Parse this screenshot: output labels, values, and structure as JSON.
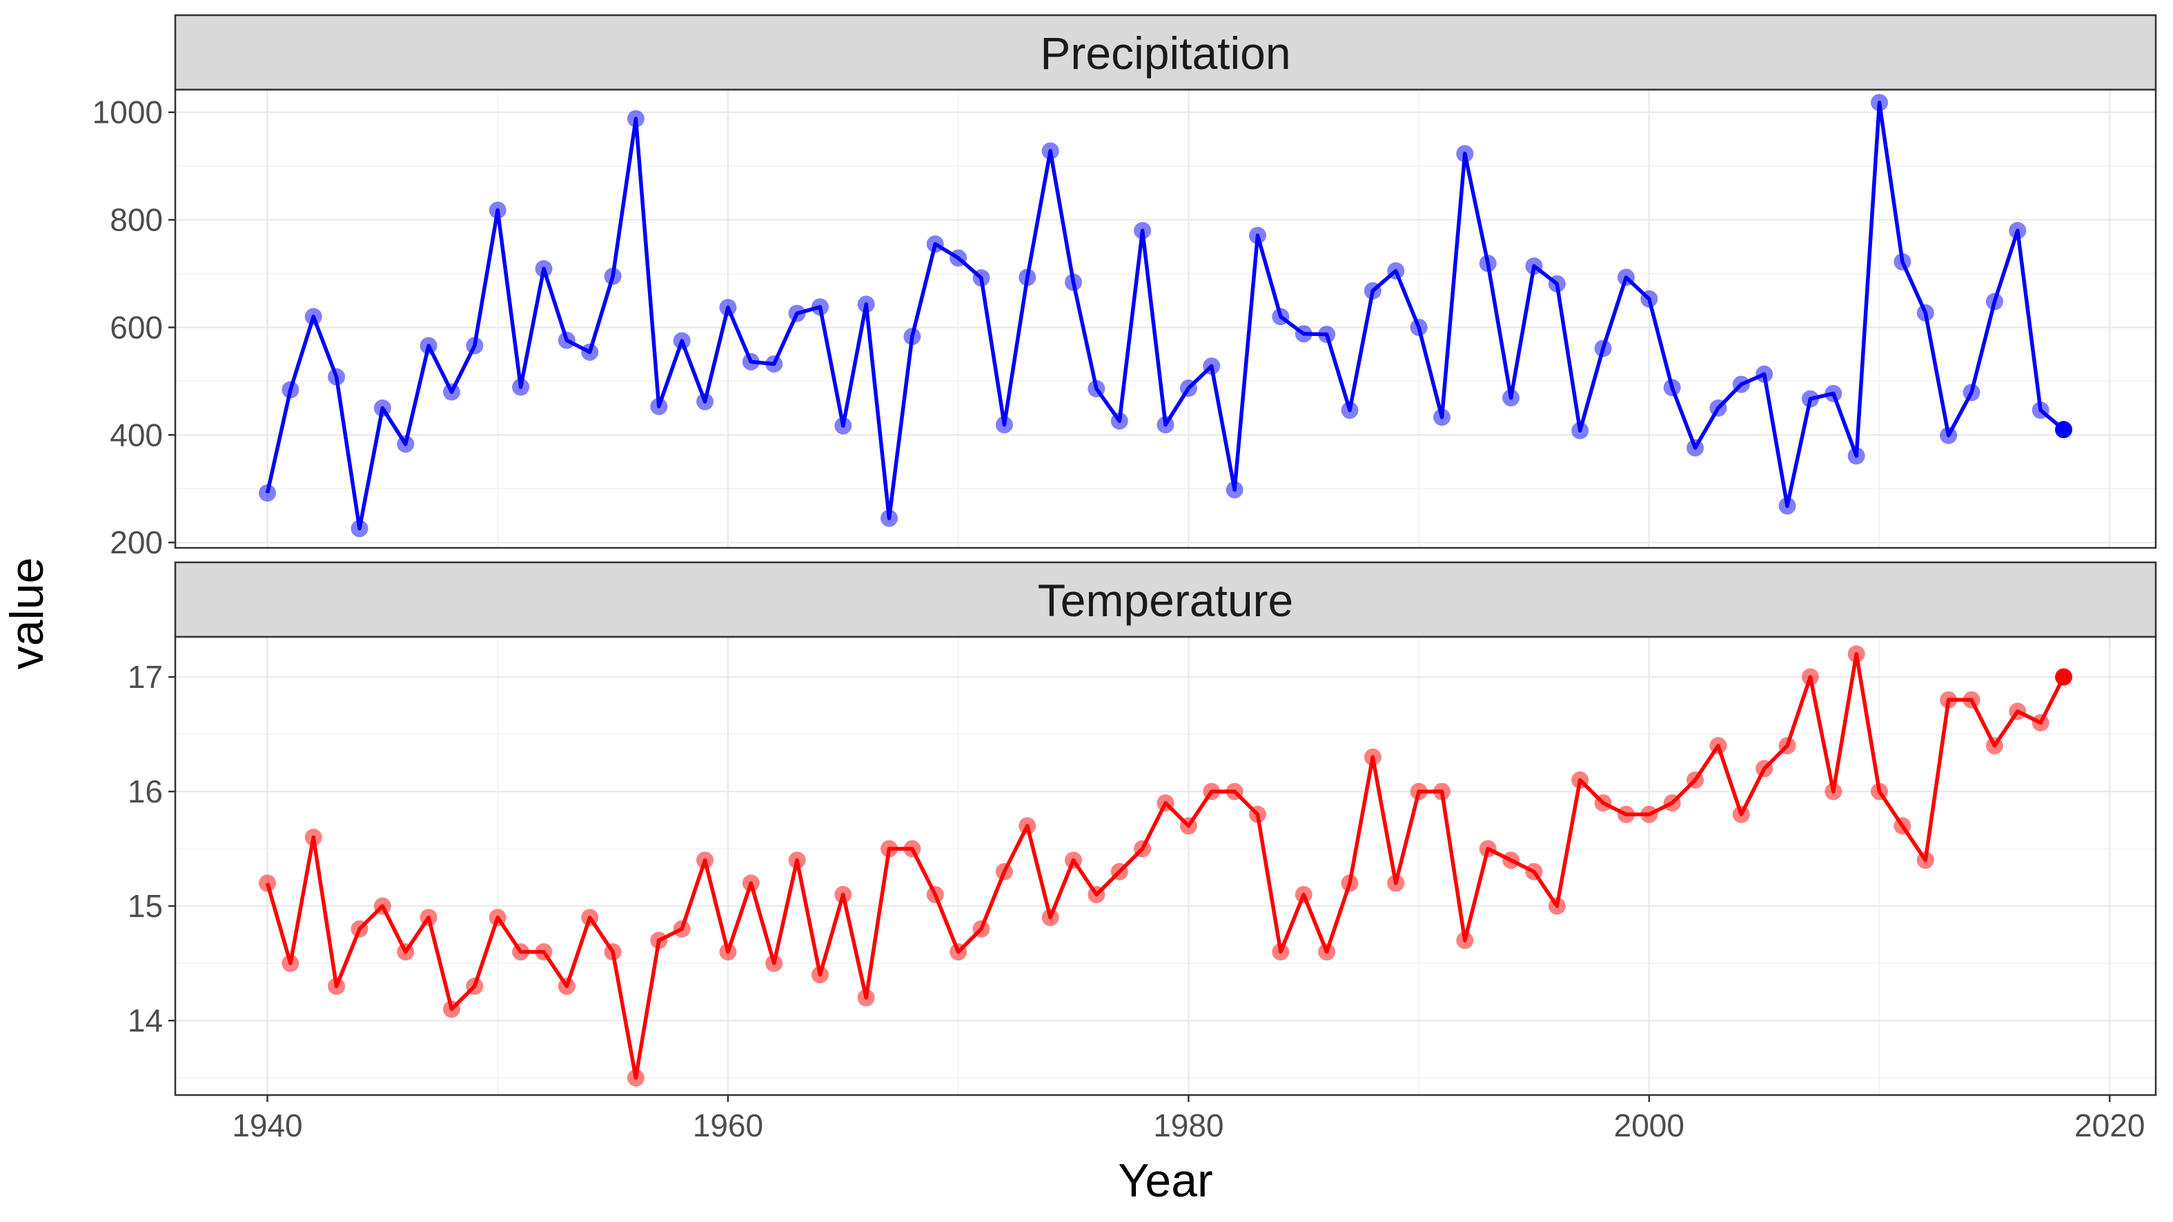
{
  "chart_data": {
    "type": "line",
    "xlabel": "Year",
    "ylabel": "value",
    "xlim": [
      1936,
      2022
    ],
    "x_ticks": [
      1940,
      1960,
      1980,
      2000,
      2020
    ],
    "x_tick_labels": [
      "1940",
      "1960",
      "1980",
      "2000",
      "2020"
    ],
    "grid": true,
    "panels": [
      {
        "strip": "Precipitation",
        "color": "#0000ff",
        "ylim": [
          190,
          1042
        ],
        "y_ticks": [
          200,
          400,
          600,
          800,
          1000
        ],
        "y_tick_labels": [
          "200",
          "400",
          "600",
          "800",
          "1000"
        ],
        "x": [
          1940,
          1941,
          1942,
          1943,
          1944,
          1945,
          1946,
          1947,
          1948,
          1949,
          1950,
          1951,
          1952,
          1953,
          1954,
          1955,
          1956,
          1957,
          1958,
          1959,
          1960,
          1961,
          1962,
          1963,
          1964,
          1965,
          1966,
          1967,
          1968,
          1969,
          1970,
          1971,
          1972,
          1973,
          1974,
          1975,
          1976,
          1977,
          1978,
          1979,
          1980,
          1981,
          1982,
          1983,
          1984,
          1985,
          1986,
          1987,
          1988,
          1989,
          1990,
          1991,
          1992,
          1993,
          1994,
          1995,
          1996,
          1997,
          1998,
          1999,
          2000,
          2001,
          2002,
          2003,
          2004,
          2005,
          2006,
          2007,
          2008,
          2009,
          2010,
          2011,
          2012,
          2013,
          2014,
          2015,
          2016,
          2017,
          2018
        ],
        "values": [
          292,
          484,
          620,
          508,
          226,
          450,
          383,
          566,
          480,
          566,
          818,
          489,
          709,
          576,
          554,
          695,
          988,
          453,
          575,
          462,
          637,
          536,
          532,
          626,
          638,
          417,
          643,
          245,
          583,
          755,
          729,
          692,
          419,
          693,
          928,
          684,
          486,
          426,
          780,
          419,
          487,
          528,
          298,
          771,
          620,
          588,
          587,
          446,
          668,
          705,
          600,
          433,
          923,
          719,
          469,
          714,
          681,
          408,
          561,
          693,
          653,
          488,
          376,
          450,
          494,
          513,
          268,
          467,
          477,
          361,
          1018,
          722,
          627,
          399,
          479,
          648,
          780,
          446,
          410
        ]
      },
      {
        "strip": "Temperature",
        "color": "#ff0000",
        "ylim": [
          13.35,
          17.35
        ],
        "y_ticks": [
          14,
          15,
          16,
          17
        ],
        "y_tick_labels": [
          "14",
          "15",
          "16",
          "17"
        ],
        "x": [
          1940,
          1941,
          1942,
          1943,
          1944,
          1945,
          1946,
          1947,
          1948,
          1949,
          1950,
          1951,
          1952,
          1953,
          1954,
          1955,
          1956,
          1957,
          1958,
          1959,
          1960,
          1961,
          1962,
          1963,
          1964,
          1965,
          1966,
          1967,
          1968,
          1969,
          1970,
          1971,
          1972,
          1973,
          1974,
          1975,
          1976,
          1977,
          1978,
          1979,
          1980,
          1981,
          1982,
          1983,
          1984,
          1985,
          1986,
          1987,
          1988,
          1989,
          1990,
          1991,
          1992,
          1993,
          1994,
          1995,
          1996,
          1997,
          1998,
          1999,
          2000,
          2001,
          2002,
          2003,
          2004,
          2005,
          2006,
          2007,
          2008,
          2009,
          2010,
          2011,
          2012,
          2013,
          2014,
          2015,
          2016,
          2017,
          2018
        ],
        "values": [
          15.2,
          14.5,
          15.6,
          14.3,
          14.8,
          15.0,
          14.6,
          14.9,
          14.1,
          14.3,
          14.9,
          14.6,
          14.6,
          14.3,
          14.9,
          14.6,
          13.5,
          14.7,
          14.8,
          15.4,
          14.6,
          15.2,
          14.5,
          15.4,
          14.4,
          15.1,
          14.2,
          15.5,
          15.5,
          15.1,
          14.6,
          14.8,
          15.3,
          15.7,
          14.9,
          15.4,
          15.1,
          15.3,
          15.5,
          15.9,
          15.7,
          16.0,
          16.0,
          15.8,
          14.6,
          15.1,
          14.6,
          15.2,
          16.3,
          15.2,
          16.0,
          16.0,
          14.7,
          15.5,
          15.4,
          15.3,
          15.0,
          16.1,
          15.9,
          15.8,
          15.8,
          15.9,
          16.1,
          16.4,
          15.8,
          16.2,
          16.4,
          17.0,
          16.0,
          17.2,
          16.0,
          15.7,
          15.4,
          16.8,
          16.8,
          16.4,
          16.7,
          16.6,
          17.0
        ]
      }
    ]
  }
}
